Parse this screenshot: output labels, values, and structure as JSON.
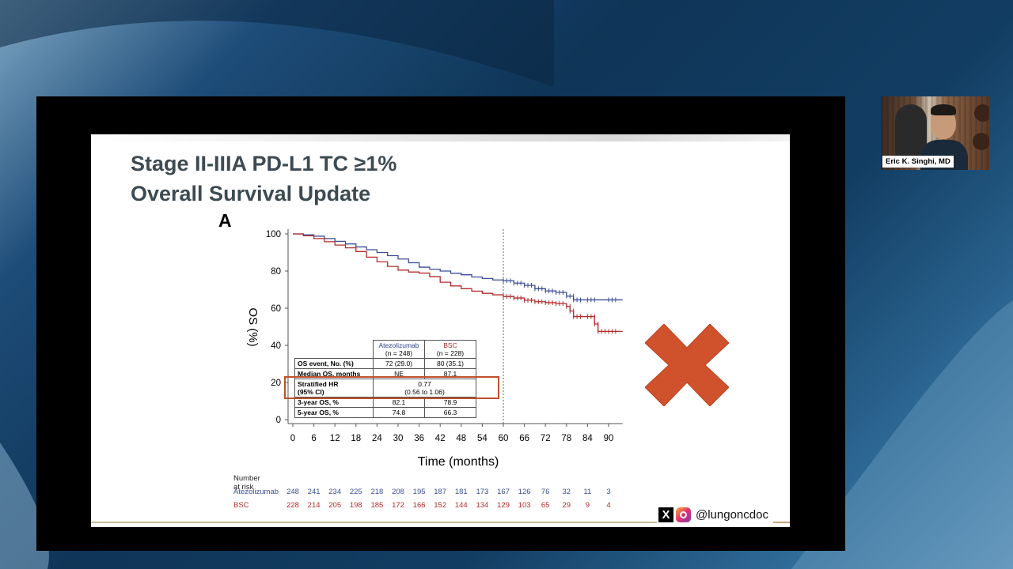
{
  "slide": {
    "title_line1": "Stage II-IIIA PD-L1 TC ≥1%",
    "title_line2": "Overall Survival Update",
    "panel_letter": "A"
  },
  "chart_data": {
    "type": "line",
    "ylabel": "OS (%)",
    "xlabel": "Time (months)",
    "xlim": [
      0,
      95
    ],
    "ylim": [
      0,
      100
    ],
    "xticks": [
      0,
      6,
      12,
      18,
      24,
      30,
      36,
      42,
      48,
      54,
      60,
      66,
      72,
      78,
      84,
      90
    ],
    "yticks": [
      0,
      20,
      40,
      60,
      80,
      100
    ],
    "reference_line_x": 60,
    "series": [
      {
        "name": "Atezolizumab",
        "color": "#3a4f95",
        "x": [
          0,
          3,
          6,
          9,
          12,
          15,
          18,
          21,
          24,
          27,
          30,
          33,
          36,
          39,
          42,
          45,
          48,
          51,
          54,
          57,
          60,
          63,
          66,
          69,
          72,
          75,
          78,
          80,
          84,
          90,
          94
        ],
        "y": [
          100,
          99.5,
          98.8,
          97.5,
          96,
          94.6,
          93,
          91.5,
          90,
          88.3,
          86.5,
          84.5,
          82.1,
          81,
          80,
          78.8,
          78,
          76.8,
          76,
          75.2,
          74.8,
          73.5,
          72.3,
          70.5,
          69.3,
          68.5,
          66.5,
          64.5,
          64.5,
          64.5,
          64.5
        ]
      },
      {
        "name": "BSC",
        "color": "#b52b2b",
        "x": [
          0,
          3,
          6,
          9,
          12,
          15,
          18,
          21,
          24,
          27,
          30,
          33,
          36,
          39,
          42,
          45,
          48,
          51,
          54,
          57,
          60,
          63,
          66,
          69,
          72,
          75,
          78,
          79,
          80,
          84,
          86,
          87,
          90,
          94
        ],
        "y": [
          100,
          99,
          97.5,
          95.8,
          94,
          92.5,
          90.5,
          87.5,
          85,
          82.5,
          80.5,
          79.5,
          78.9,
          77,
          74,
          72,
          70.5,
          69.2,
          68,
          67.2,
          66.3,
          65.5,
          64.3,
          63.5,
          63,
          62.5,
          61,
          58.5,
          55.5,
          55.5,
          51.5,
          47.5,
          47.5,
          47.5
        ]
      }
    ]
  },
  "summary_table": {
    "columns": [
      "",
      "Atezolizumab",
      "BSC"
    ],
    "column_n": [
      "",
      "(n = 248)",
      "(n = 228)"
    ],
    "rows": [
      {
        "label": "OS event, No. (%)",
        "atz": "72 (29.0)",
        "bsc": "80 (35.1)"
      },
      {
        "label": "Median OS, months",
        "atz": "NE",
        "bsc": "87.1"
      },
      {
        "label": "Stratified HR",
        "label2": "(95% CI)",
        "merged": "0.77",
        "merged2": "(0.56 to 1.06)"
      },
      {
        "label": "3-year OS, %",
        "atz": "82.1",
        "bsc": "78.9"
      },
      {
        "label": "5-year OS, %",
        "atz": "74.8",
        "bsc": "66.3"
      }
    ]
  },
  "risk_table": {
    "header": "Number at risk",
    "atz_label": "Atezolizumab",
    "bsc_label": "BSC",
    "atz": [
      "248",
      "241",
      "234",
      "225",
      "218",
      "208",
      "195",
      "187",
      "181",
      "173",
      "167",
      "126",
      "76",
      "32",
      "11",
      "3"
    ],
    "bsc": [
      "228",
      "214",
      "205",
      "198",
      "185",
      "172",
      "166",
      "152",
      "144",
      "134",
      "129",
      "103",
      "65",
      "29",
      "9",
      "4"
    ]
  },
  "social": {
    "handle": "@lungoncdoc",
    "x_icon": "x-logo",
    "instagram_icon": "instagram-logo"
  },
  "webcam": {
    "name": "Eric K. Singhi, MD"
  },
  "colors": {
    "title": "#3d4a52",
    "highlight_box": "#c0502a",
    "xmark": "#d0522c"
  }
}
